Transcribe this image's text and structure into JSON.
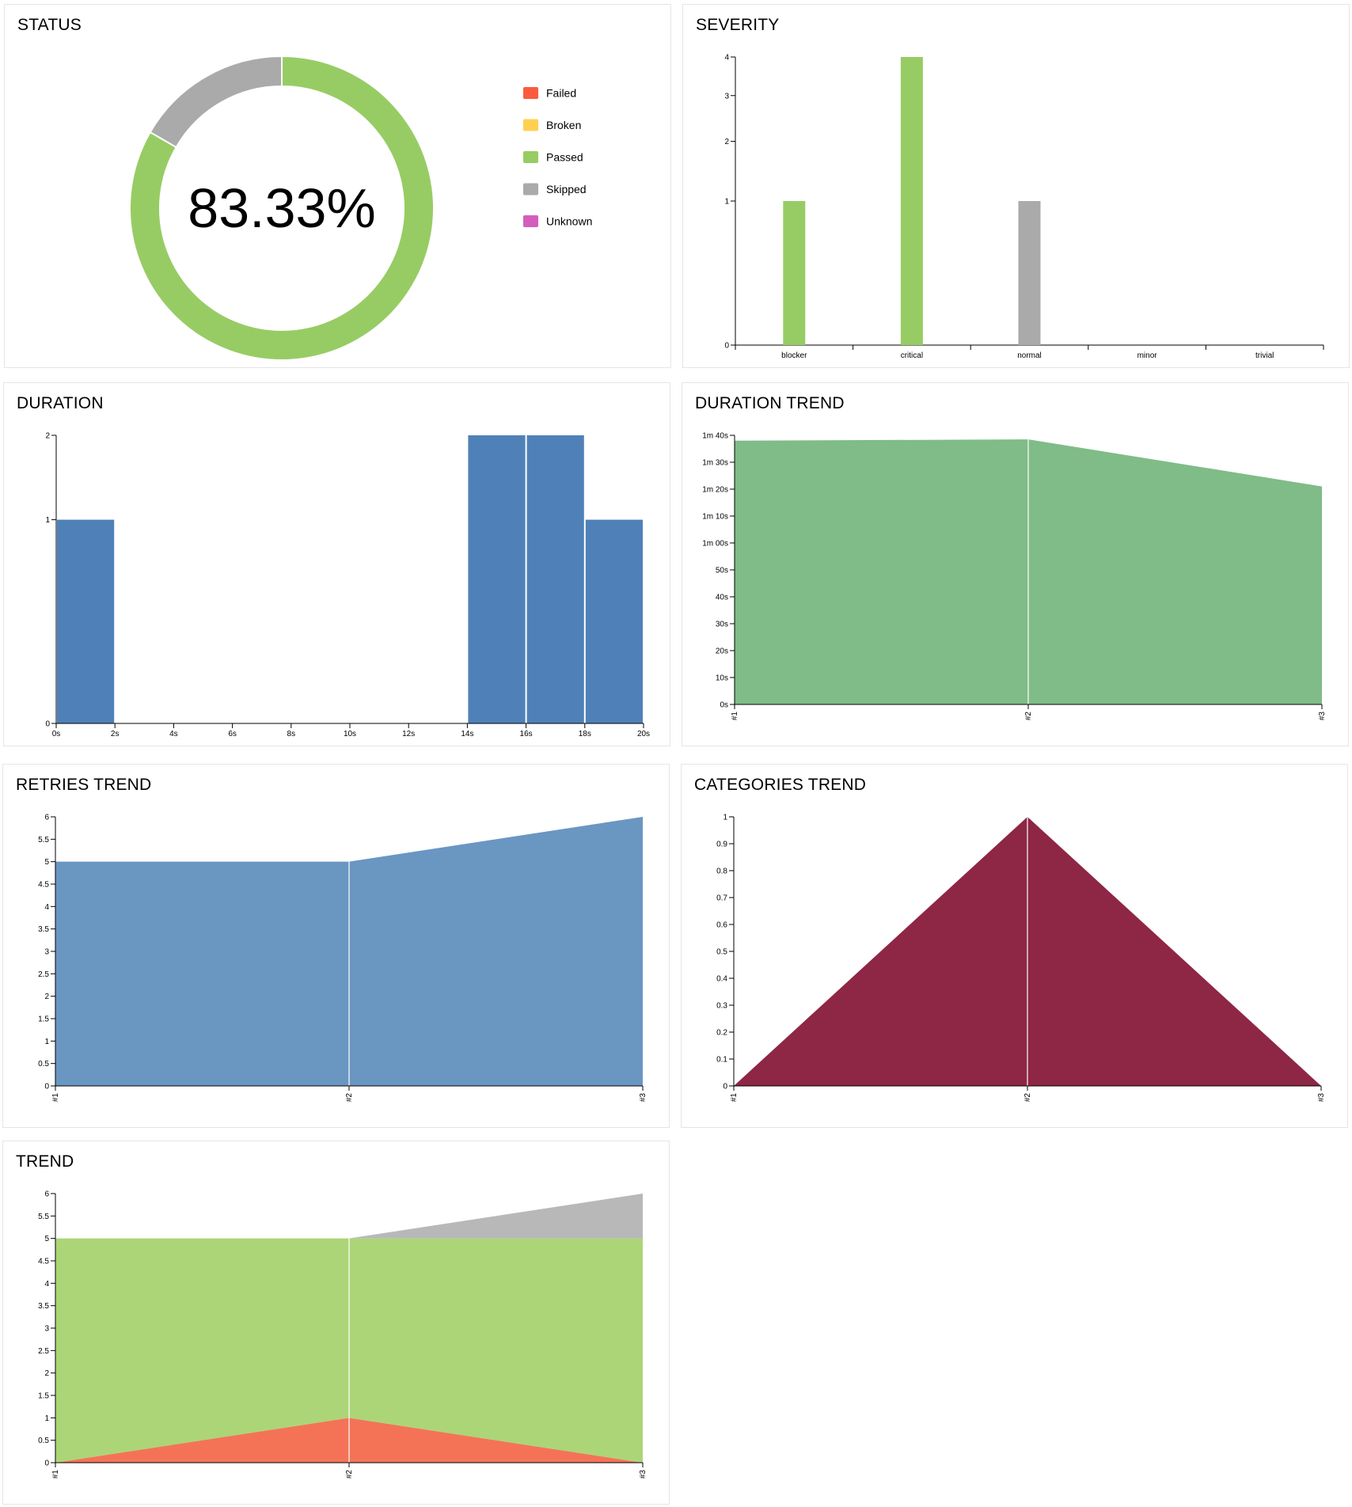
{
  "colors": {
    "failed": "#fd5a3e",
    "broken": "#ffd050",
    "passed": "#97cc64",
    "skipped": "#aaaaaa",
    "unknown": "#d35ebe",
    "duration_bar": "#4f81b8",
    "duration_trend": "#7fbc88",
    "retries_trend": "#6a96c2",
    "categories_trend": "#8e2645",
    "trend_failed": "#f47357",
    "trend_passed": "#acd577",
    "trend_skipped": "#b8b8b8"
  },
  "widgets": {
    "status": {
      "title": "STATUS"
    },
    "severity": {
      "title": "SEVERITY"
    },
    "duration": {
      "title": "DURATION"
    },
    "duration_trend": {
      "title": "DURATION TREND"
    },
    "retries_trend": {
      "title": "RETRIES TREND"
    },
    "categories_trend": {
      "title": "CATEGORIES TREND"
    },
    "trend": {
      "title": "TREND"
    }
  },
  "chart_data": [
    {
      "id": "status",
      "type": "pie",
      "title": "STATUS",
      "center_label": "83.33%",
      "legend": [
        "Failed",
        "Broken",
        "Passed",
        "Skipped",
        "Unknown"
      ],
      "legend_position": "right",
      "slices": [
        {
          "name": "Passed",
          "value": 5
        },
        {
          "name": "Skipped",
          "value": 1
        }
      ]
    },
    {
      "id": "severity",
      "type": "bar",
      "title": "SEVERITY",
      "categories": [
        "blocker",
        "critical",
        "normal",
        "minor",
        "trivial"
      ],
      "y_ticks": [
        "0",
        "1",
        "2",
        "3",
        "4"
      ],
      "ylim": [
        0,
        4
      ],
      "y_scale": "sqrt",
      "series": [
        {
          "status": "passed",
          "values": [
            1,
            4,
            0,
            0,
            0
          ]
        },
        {
          "status": "skipped",
          "values": [
            0,
            0,
            1,
            0,
            0
          ]
        }
      ]
    },
    {
      "id": "duration",
      "type": "bar",
      "title": "DURATION",
      "x_ticks": [
        "0s",
        "2s",
        "4s",
        "6s",
        "8s",
        "10s",
        "12s",
        "14s",
        "16s",
        "18s",
        "20s"
      ],
      "y_ticks": [
        "0",
        "1",
        "2"
      ],
      "xlim": [
        0,
        20
      ],
      "ylim": [
        0,
        2
      ],
      "y_scale": "sqrt",
      "bins": [
        {
          "x0": 0,
          "x1": 2,
          "count": 1
        },
        {
          "x0": 14,
          "x1": 16,
          "count": 2
        },
        {
          "x0": 16,
          "x1": 18,
          "count": 2
        },
        {
          "x0": 18,
          "x1": 20,
          "count": 1
        }
      ]
    },
    {
      "id": "duration_trend",
      "type": "area",
      "title": "DURATION TREND",
      "x": [
        "#1",
        "#2",
        "#3"
      ],
      "y_ticks": [
        "0s",
        "10s",
        "20s",
        "30s",
        "40s",
        "50s",
        "1m 00s",
        "1m 10s",
        "1m 20s",
        "1m 30s",
        "1m 40s"
      ],
      "ylim": [
        0,
        100
      ],
      "y_unit": "seconds",
      "series": [
        {
          "values": [
            98,
            98.5,
            81
          ]
        }
      ]
    },
    {
      "id": "retries_trend",
      "type": "area",
      "title": "RETRIES TREND",
      "x": [
        "#1",
        "#2",
        "#3"
      ],
      "y_ticks": [
        "0",
        "0.5",
        "1",
        "1.5",
        "2",
        "2.5",
        "3",
        "3.5",
        "4",
        "4.5",
        "5",
        "5.5",
        "6"
      ],
      "ylim": [
        0,
        6
      ],
      "series": [
        {
          "values": [
            5,
            5,
            6
          ]
        }
      ]
    },
    {
      "id": "categories_trend",
      "type": "area",
      "title": "CATEGORIES TREND",
      "x": [
        "#1",
        "#2",
        "#3"
      ],
      "y_ticks": [
        "0",
        "0.1",
        "0.2",
        "0.3",
        "0.4",
        "0.5",
        "0.6",
        "0.7",
        "0.8",
        "0.9",
        "1"
      ],
      "ylim": [
        0,
        1
      ],
      "series": [
        {
          "values": [
            0,
            1,
            0
          ]
        }
      ]
    },
    {
      "id": "trend",
      "type": "area",
      "title": "TREND",
      "stacked": true,
      "x": [
        "#1",
        "#2",
        "#3"
      ],
      "y_ticks": [
        "0",
        "0.5",
        "1",
        "1.5",
        "2",
        "2.5",
        "3",
        "3.5",
        "4",
        "4.5",
        "5",
        "5.5",
        "6"
      ],
      "ylim": [
        0,
        6
      ],
      "series": [
        {
          "status": "failed",
          "values": [
            0,
            1,
            0
          ]
        },
        {
          "status": "passed",
          "values": [
            5,
            4,
            5
          ]
        },
        {
          "status": "skipped",
          "values": [
            0,
            0,
            1
          ]
        }
      ]
    }
  ]
}
